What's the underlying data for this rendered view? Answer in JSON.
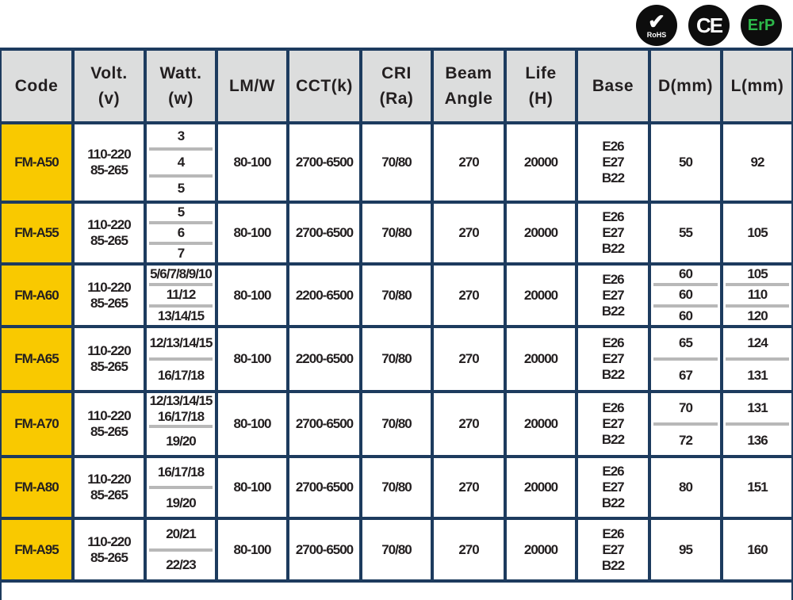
{
  "certifications": [
    {
      "name": "rohs-logo",
      "label": "RoHS"
    },
    {
      "name": "ce-logo",
      "label": "CE"
    },
    {
      "name": "erp-logo",
      "label": "ErP"
    }
  ],
  "colors": {
    "border": "#1d3b5e",
    "header_bg": "#dcdddd",
    "code_bg": "#f9c900",
    "separator": "#b8b8b8",
    "erp_green": "#2db84a"
  },
  "headers": [
    [
      "Code"
    ],
    [
      "Volt.",
      "(v)"
    ],
    [
      "Watt.",
      "(w)"
    ],
    [
      "LM/W"
    ],
    [
      "CCT(k)"
    ],
    [
      "CRI",
      "(Ra)"
    ],
    [
      "Beam",
      "Angle"
    ],
    [
      "Life",
      "(H)"
    ],
    [
      "Base"
    ],
    [
      "D(mm)"
    ],
    [
      "L(mm)"
    ]
  ],
  "rows": [
    {
      "code": "FM-A50",
      "volt": [
        "110-220",
        "85-265"
      ],
      "watt": [
        [
          "3"
        ],
        [
          "4"
        ],
        [
          "5"
        ]
      ],
      "lmw": "80-100",
      "cct": "2700-6500",
      "cri": "70/80",
      "beam": "270",
      "life": "20000",
      "base": [
        "E26",
        "E27",
        "B22"
      ],
      "d": [
        [
          "50"
        ]
      ],
      "l": [
        [
          "92"
        ]
      ]
    },
    {
      "code": "FM-A55",
      "volt": [
        "110-220",
        "85-265"
      ],
      "watt": [
        [
          "5"
        ],
        [
          "6"
        ],
        [
          "7"
        ]
      ],
      "lmw": "80-100",
      "cct": "2700-6500",
      "cri": "70/80",
      "beam": "270",
      "life": "20000",
      "base": [
        "E26",
        "E27",
        "B22"
      ],
      "d": [
        [
          "55"
        ]
      ],
      "l": [
        [
          "105"
        ]
      ]
    },
    {
      "code": "FM-A60",
      "volt": [
        "110-220",
        "85-265"
      ],
      "watt": [
        [
          "5/6/7/8/9/10"
        ],
        [
          "11/12"
        ],
        [
          "13/14/15"
        ]
      ],
      "lmw": "80-100",
      "cct": "2200-6500",
      "cri": "70/80",
      "beam": "270",
      "life": "20000",
      "base": [
        "E26",
        "E27",
        "B22"
      ],
      "d": [
        [
          "60"
        ],
        [
          "60"
        ],
        [
          "60"
        ]
      ],
      "l": [
        [
          "105"
        ],
        [
          "110"
        ],
        [
          "120"
        ]
      ]
    },
    {
      "code": "FM-A65",
      "volt": [
        "110-220",
        "85-265"
      ],
      "watt": [
        [
          "12/13/14/15"
        ],
        [
          "16/17/18"
        ]
      ],
      "lmw": "80-100",
      "cct": "2200-6500",
      "cri": "70/80",
      "beam": "270",
      "life": "20000",
      "base": [
        "E26",
        "E27",
        "B22"
      ],
      "d": [
        [
          "65"
        ],
        [
          "67"
        ]
      ],
      "l": [
        [
          "124"
        ],
        [
          "131"
        ]
      ]
    },
    {
      "code": "FM-A70",
      "volt": [
        "110-220",
        "85-265"
      ],
      "watt": [
        [
          "12/13/14/15",
          "16/17/18"
        ],
        [
          "19/20"
        ]
      ],
      "lmw": "80-100",
      "cct": "2700-6500",
      "cri": "70/80",
      "beam": "270",
      "life": "20000",
      "base": [
        "E26",
        "E27",
        "B22"
      ],
      "d": [
        [
          "70"
        ],
        [
          "72"
        ]
      ],
      "l": [
        [
          "131"
        ],
        [
          "136"
        ]
      ]
    },
    {
      "code": "FM-A80",
      "volt": [
        "110-220",
        "85-265"
      ],
      "watt": [
        [
          "16/17/18"
        ],
        [
          "19/20"
        ]
      ],
      "lmw": "80-100",
      "cct": "2700-6500",
      "cri": "70/80",
      "beam": "270",
      "life": "20000",
      "base": [
        "E26",
        "E27",
        "B22"
      ],
      "d": [
        [
          "80"
        ]
      ],
      "l": [
        [
          "151"
        ]
      ]
    },
    {
      "code": "FM-A95",
      "volt": [
        "110-220",
        "85-265"
      ],
      "watt": [
        [
          "20/21"
        ],
        [
          "22/23"
        ]
      ],
      "lmw": "80-100",
      "cct": "2700-6500",
      "cri": "70/80",
      "beam": "270",
      "life": "20000",
      "base": [
        "E26",
        "E27",
        "B22"
      ],
      "d": [
        [
          "95"
        ]
      ],
      "l": [
        [
          "160"
        ]
      ]
    }
  ]
}
